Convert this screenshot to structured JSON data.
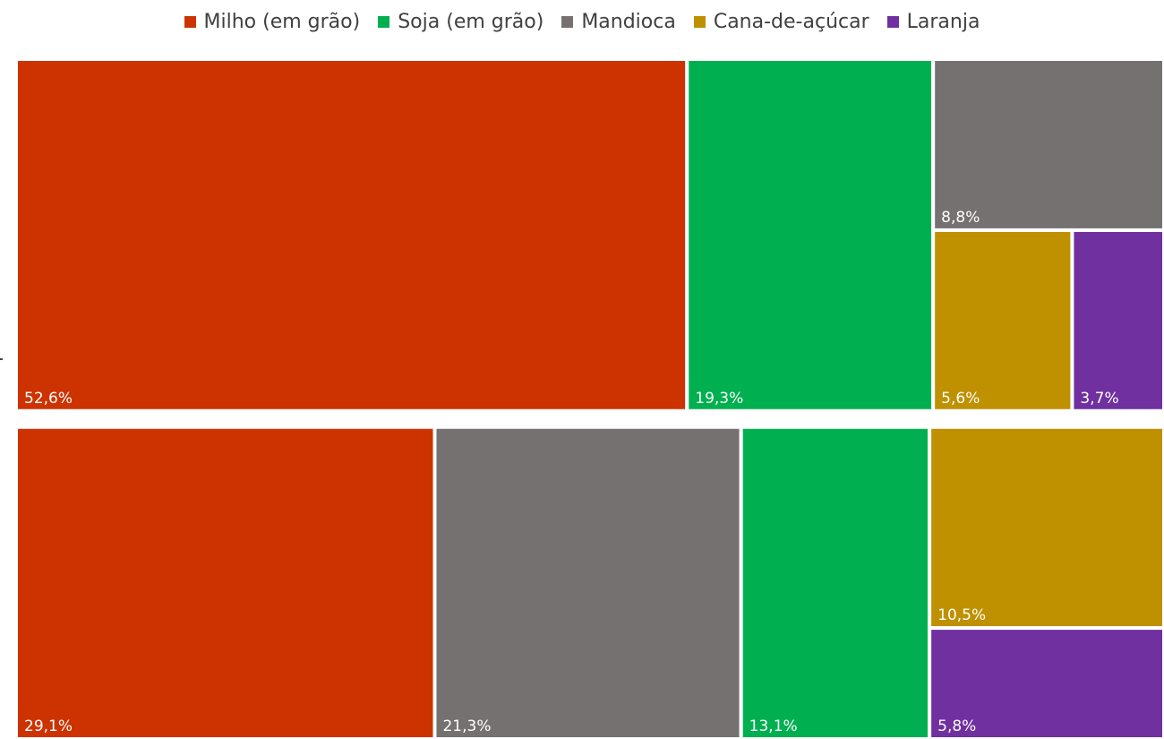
{
  "chart_data": {
    "type": "treemap",
    "title": "",
    "legend_position": "top",
    "colors": {
      "Milho (em grão)": "#cc3300",
      "Soja (em grão)": "#00b050",
      "Mandioca": "#767171",
      "Cana-de-açúcar": "#bf9000",
      "Laranja": "#7030a0"
    },
    "legend": [
      "Milho (em grão)",
      "Soja (em grão)",
      "Mandioca",
      "Cana-de-açúcar",
      "Laranja"
    ],
    "groups": [
      {
        "items": [
          {
            "category": "Milho (em grão)",
            "value": 52.6,
            "label": "52,6%"
          },
          {
            "category": "Soja (em grão)",
            "value": 19.3,
            "label": "19,3%"
          },
          {
            "category": "Mandioca",
            "value": 8.8,
            "label": "8,8%"
          },
          {
            "category": "Cana-de-açúcar",
            "value": 5.6,
            "label": "5,6%"
          },
          {
            "category": "Laranja",
            "value": 3.7,
            "label": "3,7%"
          }
        ]
      },
      {
        "items": [
          {
            "category": "Milho (em grão)",
            "value": 29.1,
            "label": "29,1%"
          },
          {
            "category": "Mandioca",
            "value": 21.3,
            "label": "21,3%"
          },
          {
            "category": "Soja (em grão)",
            "value": 13.1,
            "label": "13,1%"
          },
          {
            "category": "Cana-de-açúcar",
            "value": 10.5,
            "label": "10,5%"
          },
          {
            "category": "Laranja",
            "value": 5.8,
            "label": "5,8%"
          }
        ]
      }
    ]
  }
}
